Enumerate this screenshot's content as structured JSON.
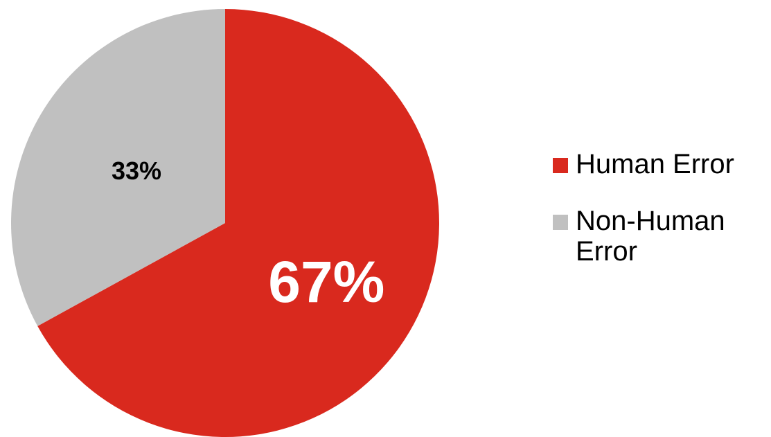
{
  "chart_data": {
    "type": "pie",
    "title": "",
    "slices": [
      {
        "label": "Human Error",
        "value": 67,
        "display": "67%",
        "color": "#d9291e"
      },
      {
        "label": "Non-Human Error",
        "value": 33,
        "display": "33%",
        "color": "#c0c0c0"
      }
    ],
    "start": "12 o'clock",
    "direction": "clockwise",
    "legend_position": "right"
  },
  "legend": {
    "items": [
      {
        "label": "Human Error",
        "color": "#d9291e"
      },
      {
        "label": "Non-Human Error",
        "color": "#c0c0c0"
      }
    ]
  }
}
